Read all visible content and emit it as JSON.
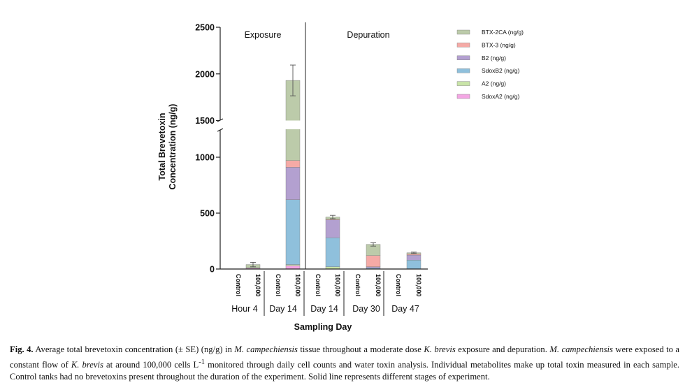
{
  "chart_data": {
    "type": "bar",
    "stacked": true,
    "title": "",
    "ylabel_line1": "Total Brevetoxin",
    "ylabel_line2": "Concentration (ng/g)",
    "xlabel": "Sampling Day",
    "axis_break": [
      1300,
      1500
    ],
    "ylim": [
      0,
      2500
    ],
    "yticks": [
      0,
      500,
      1000,
      1500,
      2000,
      2500
    ],
    "ytick_labels": [
      "0",
      "500",
      "1000",
      "1500",
      "2000",
      "2500"
    ],
    "phases": [
      "Exposure",
      "Depuration"
    ],
    "groups": [
      "Hour 4",
      "Day 14",
      "Day 14",
      "Day 30",
      "Day 47"
    ],
    "categories": [
      "Control",
      "100,000",
      "Control",
      "100,000",
      "Control",
      "100,000",
      "Control",
      "100,000",
      "Control",
      "100,000"
    ],
    "legend_position": "top-right",
    "series": [
      {
        "name": "SdoxA2 (ng/g)",
        "color": "#f4a6e4",
        "values": [
          0,
          8,
          0,
          30,
          0,
          0,
          0,
          0,
          0,
          0
        ]
      },
      {
        "name": "A2 (ng/g)",
        "color": "#c9e4a8",
        "values": [
          0,
          0,
          0,
          10,
          0,
          20,
          0,
          0,
          0,
          0
        ]
      },
      {
        "name": "SdoxB2 (ng/g)",
        "color": "#8fc0dc",
        "values": [
          0,
          2,
          0,
          580,
          0,
          260,
          0,
          10,
          0,
          80
        ]
      },
      {
        "name": "B2 (ng/g)",
        "color": "#b3a0d0",
        "values": [
          0,
          0,
          0,
          290,
          0,
          160,
          0,
          10,
          0,
          45
        ]
      },
      {
        "name": "BTX-3 (ng/g)",
        "color": "#f5aaa6",
        "values": [
          0,
          0,
          0,
          60,
          0,
          5,
          0,
          100,
          0,
          10
        ]
      },
      {
        "name": "BTX-2CA (ng/g)",
        "color": "#bccbaa",
        "values": [
          0,
          30,
          0,
          960,
          0,
          20,
          0,
          100,
          0,
          10
        ]
      }
    ],
    "totals": [
      0,
      40,
      0,
      1930,
      0,
      465,
      0,
      220,
      0,
      145
    ],
    "errors": [
      0,
      20,
      0,
      165,
      0,
      15,
      0,
      15,
      0,
      6
    ]
  },
  "caption": {
    "fig_label": "Fig. 4.",
    "t1": " Average total brevetoxin concentration (± SE) (ng/g) in ",
    "sp1": "M. campechiensis",
    "t2": " tissue throughout a moderate dose ",
    "sp2": "K. brevis",
    "t3": " exposure and depuration. ",
    "sp3": "M. campechiensis",
    "t4": " were exposed to a constant flow of ",
    "sp4": "K. brevis",
    "t5": " at around 100,000 cells L",
    "sup": "-1",
    "t6": " monitored through daily cell counts and water toxin analysis. Individual metabolites make up total toxin measured in each sample. Control tanks had no brevetoxins present throughout the duration of the experiment. Solid line represents different stages of experiment."
  }
}
